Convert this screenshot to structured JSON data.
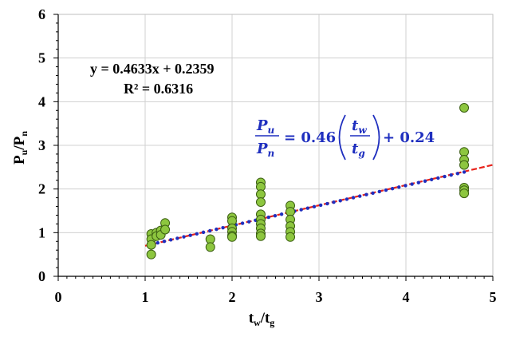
{
  "chart_data": {
    "type": "scatter",
    "xlim": [
      0,
      5
    ],
    "ylim": [
      0,
      6
    ],
    "x_ticks": [
      "0",
      "1",
      "2",
      "3",
      "4",
      "5"
    ],
    "y_ticks": [
      "0",
      "1",
      "2",
      "3",
      "4",
      "5",
      "6"
    ],
    "grid": true,
    "xlabel": {
      "main": "t",
      "sub1": "w",
      "sep": "/t",
      "sub2": "g"
    },
    "ylabel": {
      "main": "P",
      "sub1": "u",
      "sep": "/P",
      "sub2": "n"
    },
    "regression_text": {
      "equation": "y = 0.4633x + 0.2359",
      "r_squared": "R² = 0.6316"
    },
    "formula": {
      "lhs_num": "P",
      "lhs_num_sub": "u",
      "lhs_den": "P",
      "lhs_den_sub": "n",
      "eq_coef": "= 0.46",
      "rhs_num": "t",
      "rhs_num_sub": "w",
      "rhs_den": "t",
      "rhs_den_sub": "g",
      "tail": "+ 0.24"
    },
    "trendline": {
      "slope": 0.4633,
      "intercept": 0.2359,
      "x_range": [
        1.0,
        5.0
      ],
      "color": "#e8231c"
    },
    "model_line": {
      "slope": 0.46,
      "intercept": 0.24,
      "x_range": [
        1.07,
        4.67
      ],
      "color": "#1f2fbf"
    },
    "marker_color": "#8dc63f",
    "marker_stroke": "#3b5e12",
    "points": [
      {
        "x": 1.07,
        "y": 0.97
      },
      {
        "x": 1.07,
        "y": 0.85
      },
      {
        "x": 1.07,
        "y": 0.72
      },
      {
        "x": 1.07,
        "y": 0.5
      },
      {
        "x": 1.13,
        "y": 1.0
      },
      {
        "x": 1.13,
        "y": 0.92
      },
      {
        "x": 1.18,
        "y": 1.05
      },
      {
        "x": 1.18,
        "y": 0.95
      },
      {
        "x": 1.23,
        "y": 1.22
      },
      {
        "x": 1.23,
        "y": 1.07
      },
      {
        "x": 1.75,
        "y": 0.85
      },
      {
        "x": 1.75,
        "y": 0.67
      },
      {
        "x": 2.0,
        "y": 1.35
      },
      {
        "x": 2.0,
        "y": 1.27
      },
      {
        "x": 2.0,
        "y": 1.1
      },
      {
        "x": 2.0,
        "y": 1.02
      },
      {
        "x": 2.0,
        "y": 0.93
      },
      {
        "x": 2.0,
        "y": 0.9
      },
      {
        "x": 2.33,
        "y": 2.15
      },
      {
        "x": 2.33,
        "y": 2.05
      },
      {
        "x": 2.33,
        "y": 1.88
      },
      {
        "x": 2.33,
        "y": 1.7
      },
      {
        "x": 2.33,
        "y": 1.42
      },
      {
        "x": 2.33,
        "y": 1.3
      },
      {
        "x": 2.33,
        "y": 1.2
      },
      {
        "x": 2.33,
        "y": 1.1
      },
      {
        "x": 2.33,
        "y": 0.98
      },
      {
        "x": 2.33,
        "y": 0.92
      },
      {
        "x": 2.67,
        "y": 1.62
      },
      {
        "x": 2.67,
        "y": 1.48
      },
      {
        "x": 2.67,
        "y": 1.3
      },
      {
        "x": 2.67,
        "y": 1.15
      },
      {
        "x": 2.67,
        "y": 1.02
      },
      {
        "x": 2.67,
        "y": 0.9
      },
      {
        "x": 4.67,
        "y": 3.86
      },
      {
        "x": 4.67,
        "y": 2.85
      },
      {
        "x": 4.67,
        "y": 2.67
      },
      {
        "x": 4.67,
        "y": 2.55
      },
      {
        "x": 4.67,
        "y": 2.03
      },
      {
        "x": 4.67,
        "y": 1.97
      },
      {
        "x": 4.67,
        "y": 1.9
      }
    ]
  }
}
